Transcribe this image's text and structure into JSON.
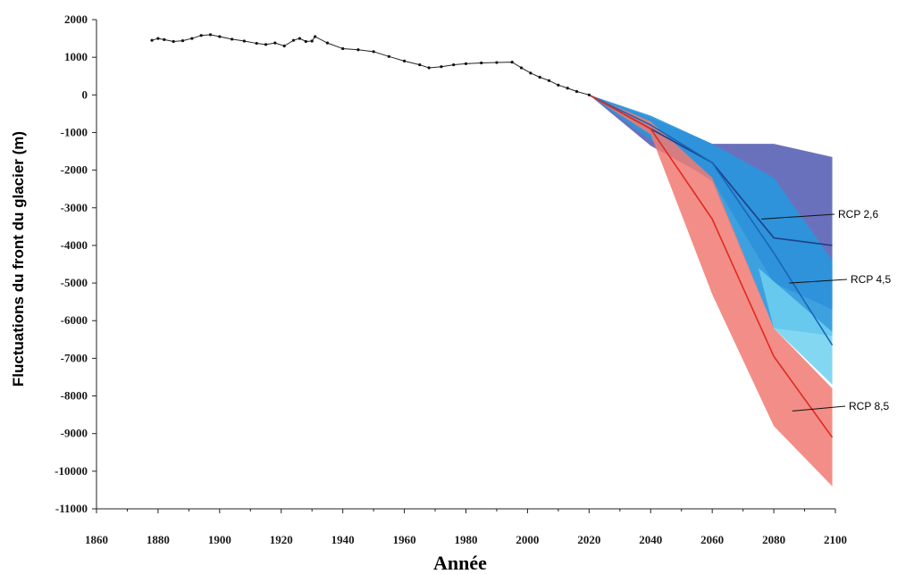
{
  "chart_data": {
    "type": "line",
    "title": "",
    "xlabel": "Année",
    "ylabel": "Fluctuations du front du glacier (m)",
    "xlim": [
      1860,
      2100
    ],
    "ylim": [
      -11000,
      2000
    ],
    "x_ticks": [
      1860,
      1880,
      1900,
      1920,
      1940,
      1960,
      1980,
      2000,
      2020,
      2040,
      2060,
      2080,
      2100
    ],
    "y_ticks": [
      2000,
      1000,
      0,
      -1000,
      -2000,
      -3000,
      -4000,
      -5000,
      -6000,
      -7000,
      -8000,
      -9000,
      -10000,
      -11000
    ],
    "grid": false,
    "observed": {
      "x": [
        1878,
        1880,
        1882,
        1885,
        1888,
        1891,
        1894,
        1897,
        1900,
        1904,
        1908,
        1912,
        1915,
        1918,
        1921,
        1924,
        1926,
        1928,
        1930,
        1931,
        1935,
        1940,
        1945,
        1950,
        1955,
        1960,
        1965,
        1968,
        1972,
        1976,
        1980,
        1985,
        1990,
        1995,
        1998,
        2001,
        2004,
        2007,
        2010,
        2013,
        2016,
        2020
      ],
      "y": [
        1450,
        1500,
        1470,
        1420,
        1440,
        1500,
        1580,
        1600,
        1550,
        1480,
        1430,
        1370,
        1340,
        1380,
        1300,
        1450,
        1500,
        1420,
        1430,
        1550,
        1380,
        1230,
        1200,
        1150,
        1020,
        900,
        800,
        720,
        750,
        800,
        830,
        850,
        860,
        870,
        720,
        580,
        470,
        380,
        260,
        180,
        90,
        0
      ]
    },
    "series": [
      {
        "name": "RCP 2,6",
        "color": "#1e3f87",
        "band_color": "#5a62b5",
        "x": [
          2020,
          2040,
          2060,
          2080,
          2099
        ],
        "y": [
          0,
          -900,
          -1800,
          -3800,
          -4000
        ],
        "lower": [
          0,
          -1350,
          -2250,
          -5000,
          -5700
        ],
        "upper": [
          0,
          -600,
          -1300,
          -1300,
          -1650
        ]
      },
      {
        "name": "RCP 4,5",
        "color": "#1a66b8",
        "band_color": "#2897dd",
        "x": [
          2020,
          2040,
          2060,
          2080,
          2099
        ],
        "y": [
          0,
          -800,
          -1800,
          -4200,
          -6650
        ],
        "lower": [
          0,
          -1200,
          -2300,
          -6200,
          -6400
        ],
        "upper": [
          0,
          -550,
          -1300,
          -2200,
          -4400
        ]
      },
      {
        "name": "RCP 8,5",
        "color": "#e02a22",
        "band_color": "#f07a72",
        "x": [
          2020,
          2040,
          2060,
          2080,
          2099
        ],
        "y": [
          0,
          -900,
          -3300,
          -6950,
          -9100
        ],
        "lower": [
          0,
          -1050,
          -5300,
          -8800,
          -10400
        ],
        "upper": [
          0,
          -700,
          -2200,
          -6200,
          -7800
        ]
      }
    ],
    "annotations": [
      "RCP 2,6",
      "RCP 4,5",
      "RCP 8,5"
    ],
    "band_lightblue_color": "#6fd0ee"
  }
}
